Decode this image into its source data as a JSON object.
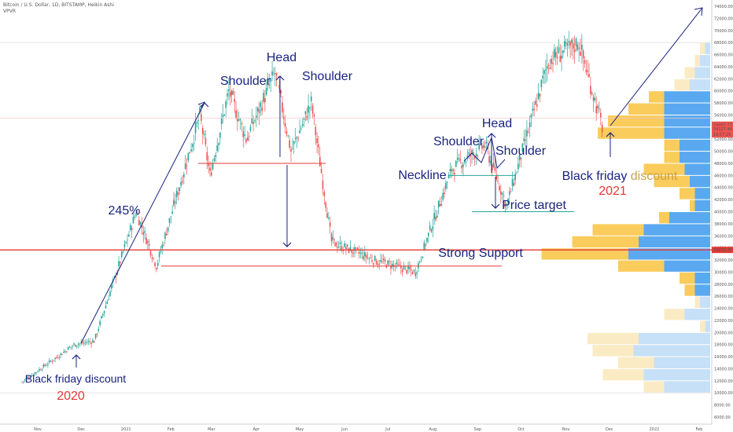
{
  "header": {
    "title": "Bitcoin / U.S. Dollar, 1D, BITSTAMP, Heikin Ashi",
    "indicator": "VPVR"
  },
  "price_axis": {
    "currency": "USD",
    "ticks": [
      "74000.00",
      "72000.00",
      "70000.00",
      "68000.00",
      "66000.00",
      "64000.00",
      "62000.00",
      "60000.00",
      "58000.00",
      "56000.00",
      "54000.00",
      "52000.00",
      "50000.00",
      "48000.00",
      "46000.00",
      "44000.00",
      "42000.00",
      "40000.00",
      "38000.00",
      "36000.00",
      "34000.00",
      "32000.00",
      "30000.00",
      "28000.00",
      "26000.00",
      "24000.00",
      "22000.00",
      "20000.00",
      "18000.00",
      "16000.00",
      "14000.00",
      "12000.00",
      "10000.00",
      "8000.00",
      "6000.00"
    ],
    "labels": [
      {
        "text": "54402.33",
        "color": "#ef5350",
        "value": 54402
      },
      {
        "text": "BTCUSD",
        "color": "#ef5350",
        "value": 53300
      },
      {
        "text": "54127.46",
        "color": "#ef5350",
        "value": 53700
      },
      {
        "text": "19:57:25",
        "color": "#ef5350",
        "value": 52800
      },
      {
        "text": "33671.35",
        "color": "#e53935",
        "value": 33671
      }
    ]
  },
  "time_axis": {
    "ticks": [
      "Nov",
      "Dec",
      "2021",
      "Feb",
      "Mar",
      "Apr",
      "May",
      "Jun",
      "Jul",
      "Aug",
      "Sep",
      "Oct",
      "Nov",
      "Dec",
      "2022",
      "Feb"
    ]
  },
  "annotations": {
    "head1": "Head",
    "shoulder1_left": "Shoulder",
    "shoulder1_right": "Shoulder",
    "pct": "245%",
    "bf_2020": "Black friday discount",
    "year_2020": "2020",
    "strong_support": "Strong Support",
    "neckline": "Neckline",
    "shoulder2_left": "Shoulder",
    "head2": "Head",
    "shoulder2_right": "Shoulder",
    "price_target": "Price target",
    "bf_2021_a": "Black friday ",
    "bf_2021_b": "discount",
    "year_2021": "2021"
  },
  "colors": {
    "up": "#26a69a",
    "down": "#ef5350",
    "annotation": "#1a237e",
    "highlight": "#e53935",
    "vp_up": "#5aa9f0",
    "vp_down": "#f9cc5c",
    "vp_up_light": "#c6e0f7",
    "vp_down_light": "#fbebc4"
  },
  "chart_data": {
    "type": "candlestick",
    "title": "Bitcoin / U.S. Dollar, 1D, BITSTAMP, Heikin Ashi",
    "ylim": [
      6000,
      74000
    ],
    "date_range": [
      "2020-10-21",
      "2021-11-26"
    ],
    "key_closes": [
      {
        "date": "2020-10-21",
        "close": 11800
      },
      {
        "date": "2020-11-26",
        "close": 18000
      },
      {
        "date": "2020-12-10",
        "close": 18600
      },
      {
        "date": "2021-01-08",
        "close": 40000
      },
      {
        "date": "2021-01-22",
        "close": 31000
      },
      {
        "date": "2021-02-21",
        "close": 56000
      },
      {
        "date": "2021-02-28",
        "close": 46000
      },
      {
        "date": "2021-03-13",
        "close": 60000
      },
      {
        "date": "2021-03-25",
        "close": 52000
      },
      {
        "date": "2021-04-14",
        "close": 63000
      },
      {
        "date": "2021-04-25",
        "close": 50000
      },
      {
        "date": "2021-05-09",
        "close": 58000
      },
      {
        "date": "2021-05-23",
        "close": 35000
      },
      {
        "date": "2021-06-21",
        "close": 32000
      },
      {
        "date": "2021-07-20",
        "close": 30000
      },
      {
        "date": "2021-08-14",
        "close": 47000
      },
      {
        "date": "2021-09-06",
        "close": 51000
      },
      {
        "date": "2021-09-21",
        "close": 41000
      },
      {
        "date": "2021-10-20",
        "close": 65000
      },
      {
        "date": "2021-11-10",
        "close": 68000
      },
      {
        "date": "2021-11-26",
        "close": 54000
      }
    ],
    "volume_profile": [
      {
        "price": 67000,
        "up": 1,
        "down": 1,
        "ghost": true
      },
      {
        "price": 65000,
        "up": 2,
        "down": 1,
        "ghost": true
      },
      {
        "price": 63000,
        "up": 3,
        "down": 2,
        "ghost": true
      },
      {
        "price": 61000,
        "up": 4,
        "down": 3,
        "ghost": true
      },
      {
        "price": 59000,
        "up": 9,
        "down": 3
      },
      {
        "price": 57000,
        "up": 9,
        "down": 7
      },
      {
        "price": 55000,
        "up": 9,
        "down": 11
      },
      {
        "price": 53000,
        "up": 9,
        "down": 13
      },
      {
        "price": 51000,
        "up": 6,
        "down": 3
      },
      {
        "price": 49000,
        "up": 6,
        "down": 3
      },
      {
        "price": 47000,
        "up": 5,
        "down": 8
      },
      {
        "price": 45000,
        "up": 4,
        "down": 7
      },
      {
        "price": 43000,
        "up": 3,
        "down": 3
      },
      {
        "price": 41000,
        "up": 3,
        "down": 1
      },
      {
        "price": 39000,
        "up": 8,
        "down": 2
      },
      {
        "price": 37000,
        "up": 13,
        "down": 10
      },
      {
        "price": 35000,
        "up": 14,
        "down": 13
      },
      {
        "price": 33000,
        "up": 16,
        "down": 17
      },
      {
        "price": 31000,
        "up": 9,
        "down": 9
      },
      {
        "price": 29000,
        "up": 3,
        "down": 3
      },
      {
        "price": 27000,
        "up": 3,
        "down": 2
      },
      {
        "price": 25000,
        "up": 2,
        "down": 1,
        "ghost": true
      },
      {
        "price": 23000,
        "up": 5,
        "down": 4,
        "ghost": true
      },
      {
        "price": 21000,
        "up": 1,
        "down": 1,
        "ghost": true
      },
      {
        "price": 19000,
        "up": 14,
        "down": 10,
        "ghost": true
      },
      {
        "price": 17000,
        "up": 15,
        "down": 8,
        "ghost": true
      },
      {
        "price": 15000,
        "up": 11,
        "down": 7,
        "ghost": true
      },
      {
        "price": 13000,
        "up": 13,
        "down": 8,
        "ghost": true
      },
      {
        "price": 11000,
        "up": 9,
        "down": 4,
        "ghost": true
      }
    ],
    "levels": {
      "strong_support": 33671,
      "support_low": 31000,
      "neckline": 48000,
      "price_target": 40000,
      "neckline2": 46000
    }
  }
}
